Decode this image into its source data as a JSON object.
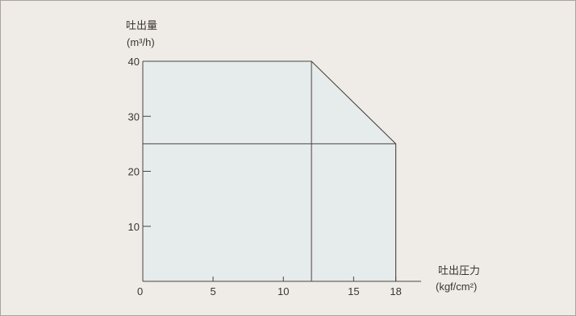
{
  "chart_data": {
    "type": "area",
    "title": "",
    "ylabel": "吐出量",
    "ylabel_unit": "(m³/h)",
    "xlabel": "吐出圧力",
    "xlabel_unit": "(kgf/cm²)",
    "xlim": [
      0,
      20
    ],
    "ylim": [
      0,
      40
    ],
    "x_ticks": [
      0,
      5,
      10,
      15,
      18
    ],
    "x_tick_labels": [
      "0",
      "5",
      "10",
      "15",
      "18"
    ],
    "y_ticks": [
      10,
      20,
      30,
      40
    ],
    "y_tick_labels": [
      "10",
      "20",
      "30",
      "40"
    ],
    "region": {
      "x": [
        0,
        12,
        18,
        18,
        0
      ],
      "y": [
        40,
        40,
        25,
        0,
        0
      ]
    },
    "guide_lines": {
      "horizontal_y": 25,
      "vertical_x": 12
    },
    "colors": {
      "region_fill": "#e6ebec",
      "line": "#4a4540",
      "background": "#efebe6"
    }
  }
}
